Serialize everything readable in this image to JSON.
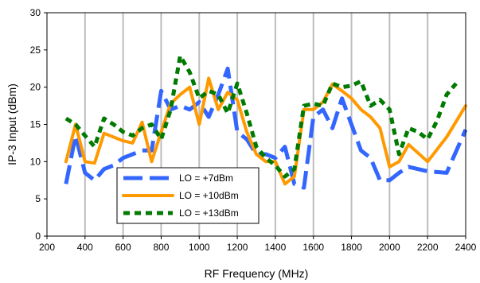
{
  "chart_data": {
    "type": "line",
    "title": "",
    "xlabel": "RF Frequency (MHz)",
    "ylabel": "IP-3 Input (dBm)",
    "xlim": [
      200,
      2400
    ],
    "ylim": [
      0,
      30
    ],
    "xticks": [
      200,
      400,
      600,
      800,
      1000,
      1200,
      1400,
      1600,
      1800,
      2000,
      2200,
      2400
    ],
    "yticks": [
      0,
      5,
      10,
      15,
      20,
      25,
      30
    ],
    "grid": "vertical",
    "legend_position": "lower-left",
    "series": [
      {
        "name": "LO = +7dBm",
        "color": "#3366ff",
        "dash": "long-dash",
        "points": [
          [
            300,
            7
          ],
          [
            350,
            13.5
          ],
          [
            400,
            8.5
          ],
          [
            450,
            7.5
          ],
          [
            500,
            9
          ],
          [
            550,
            9.5
          ],
          [
            600,
            10.5
          ],
          [
            650,
            11
          ],
          [
            700,
            11.5
          ],
          [
            750,
            11.5
          ],
          [
            800,
            19.5
          ],
          [
            850,
            17
          ],
          [
            900,
            17.5
          ],
          [
            950,
            17
          ],
          [
            1000,
            18
          ],
          [
            1050,
            16
          ],
          [
            1100,
            19
          ],
          [
            1150,
            22.5
          ],
          [
            1200,
            14
          ],
          [
            1250,
            13
          ],
          [
            1300,
            11
          ],
          [
            1350,
            11
          ],
          [
            1400,
            10.5
          ],
          [
            1450,
            12
          ],
          [
            1500,
            7
          ],
          [
            1550,
            6.5
          ],
          [
            1600,
            16
          ],
          [
            1650,
            17
          ],
          [
            1700,
            14.5
          ],
          [
            1750,
            18.5
          ],
          [
            1800,
            15
          ],
          [
            1850,
            11.5
          ],
          [
            1900,
            10.5
          ],
          [
            1950,
            7.5
          ],
          [
            2000,
            7.5
          ],
          [
            2050,
            8.5
          ],
          [
            2100,
            9.3
          ],
          [
            2150,
            9
          ],
          [
            2200,
            8.7
          ],
          [
            2300,
            8.5
          ],
          [
            2400,
            14.3
          ]
        ]
      },
      {
        "name": "LO = +10dBm",
        "color": "#ff9900",
        "dash": "solid",
        "points": [
          [
            300,
            10
          ],
          [
            350,
            15
          ],
          [
            400,
            10
          ],
          [
            450,
            9.8
          ],
          [
            500,
            13.8
          ],
          [
            600,
            12.8
          ],
          [
            650,
            12.5
          ],
          [
            700,
            15.3
          ],
          [
            750,
            10
          ],
          [
            800,
            14
          ],
          [
            850,
            17.8
          ],
          [
            900,
            19
          ],
          [
            950,
            20
          ],
          [
            1000,
            15
          ],
          [
            1050,
            21.2
          ],
          [
            1100,
            17
          ],
          [
            1150,
            19.3
          ],
          [
            1200,
            18.3
          ],
          [
            1250,
            14
          ],
          [
            1300,
            11
          ],
          [
            1350,
            10
          ],
          [
            1400,
            10
          ],
          [
            1450,
            7
          ],
          [
            1500,
            8
          ],
          [
            1550,
            17
          ],
          [
            1600,
            17
          ],
          [
            1650,
            18
          ],
          [
            1700,
            20.4
          ],
          [
            1750,
            19.5
          ],
          [
            1800,
            18.5
          ],
          [
            1850,
            17
          ],
          [
            1900,
            16
          ],
          [
            1950,
            14.5
          ],
          [
            2000,
            9.3
          ],
          [
            2050,
            10
          ],
          [
            2100,
            12.3
          ],
          [
            2200,
            10
          ],
          [
            2300,
            13.3
          ],
          [
            2400,
            17.5
          ]
        ]
      },
      {
        "name": "LO = +13dBm",
        "color": "#007a00",
        "dash": "dotted",
        "points": [
          [
            300,
            15.8
          ],
          [
            350,
            15
          ],
          [
            400,
            13.5
          ],
          [
            450,
            12
          ],
          [
            500,
            15.8
          ],
          [
            550,
            15
          ],
          [
            600,
            14
          ],
          [
            650,
            13.5
          ],
          [
            700,
            14.5
          ],
          [
            750,
            15
          ],
          [
            800,
            13
          ],
          [
            850,
            17
          ],
          [
            900,
            24.2
          ],
          [
            950,
            22
          ],
          [
            1000,
            18.5
          ],
          [
            1050,
            19.5
          ],
          [
            1100,
            19
          ],
          [
            1150,
            16.5
          ],
          [
            1200,
            20.5
          ],
          [
            1250,
            16.5
          ],
          [
            1300,
            12
          ],
          [
            1350,
            10.5
          ],
          [
            1400,
            9.5
          ],
          [
            1450,
            8
          ],
          [
            1500,
            9
          ],
          [
            1550,
            17.5
          ],
          [
            1600,
            17.8
          ],
          [
            1650,
            17.5
          ],
          [
            1700,
            20.5
          ],
          [
            1750,
            20
          ],
          [
            1800,
            20.2
          ],
          [
            1850,
            20.8
          ],
          [
            1900,
            17.5
          ],
          [
            1950,
            18.3
          ],
          [
            2000,
            17
          ],
          [
            2050,
            11
          ],
          [
            2100,
            14.5
          ],
          [
            2150,
            14
          ],
          [
            2200,
            13
          ],
          [
            2250,
            15.5
          ],
          [
            2300,
            19
          ],
          [
            2350,
            20.5
          ]
        ]
      }
    ]
  }
}
